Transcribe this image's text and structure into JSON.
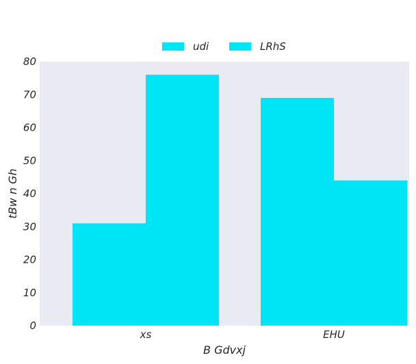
{
  "chart_data": {
    "type": "bar",
    "categories": [
      "xs",
      "EHU"
    ],
    "series": [
      {
        "name": "udi",
        "values": [
          31,
          69
        ],
        "color": "#00e5f5"
      },
      {
        "name": "LRhS",
        "values": [
          76,
          44
        ],
        "color": "#00e5f5"
      }
    ],
    "xlabel": "B  Gdvxj",
    "ylabel": "tBw n Gh",
    "ylim": [
      0,
      80
    ],
    "yticks": [
      0,
      10,
      20,
      30,
      40,
      50,
      60,
      70,
      80
    ],
    "grid": false,
    "legend_position": "top-center",
    "background_color": "#eaeaf2"
  }
}
